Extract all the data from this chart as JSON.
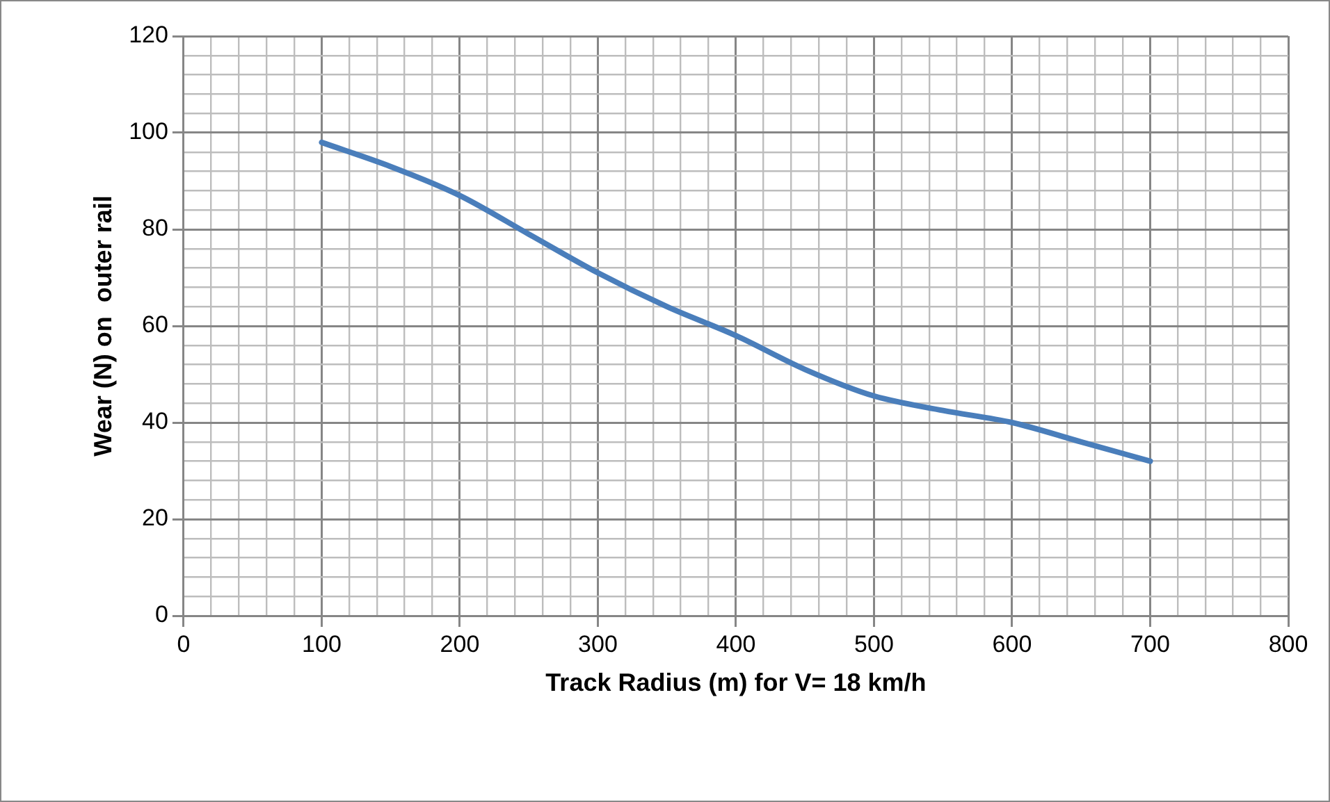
{
  "chart_data": {
    "type": "line",
    "xlabel": "Track Radius (m) for V= 18 km/h",
    "ylabel": "Wear (N) on  outer rail",
    "x": [
      100,
      150,
      200,
      250,
      300,
      350,
      400,
      450,
      500,
      550,
      600,
      650,
      700
    ],
    "series": [
      {
        "color": "#4a7ebb",
        "values": [
          98,
          93,
          87,
          79,
          71,
          64,
          58,
          51,
          45.5,
          42.5,
          40,
          36,
          32
        ]
      }
    ],
    "xlim": [
      0,
      800
    ],
    "ylim": [
      0,
      120
    ],
    "xticks": [
      0,
      {
        "value": 20,
        "label": null
      },
      {
        "value": 40,
        "label": null
      },
      {
        "value": 60,
        "label": null
      },
      {
        "value": 80,
        "label": null
      },
      100,
      {
        "value": 120,
        "label": null
      },
      {
        "value": 140,
        "label": null
      },
      {
        "value": 160,
        "label": null
      },
      {
        "value": 180,
        "label": null
      },
      200,
      {
        "value": 220,
        "label": null
      },
      {
        "value": 240,
        "label": null
      },
      {
        "value": 260,
        "label": null
      },
      {
        "value": 280,
        "label": null
      },
      300,
      {
        "value": 320,
        "label": null
      },
      {
        "value": 340,
        "label": null
      },
      {
        "value": 360,
        "label": null
      },
      {
        "value": 380,
        "label": null
      },
      400,
      {
        "value": 420,
        "label": null
      },
      {
        "value": 440,
        "label": null
      },
      {
        "value": 460,
        "label": null
      },
      {
        "value": 480,
        "label": null
      },
      500,
      {
        "value": 520,
        "label": null
      },
      {
        "value": 540,
        "label": null
      },
      {
        "value": 560,
        "label": null
      },
      {
        "value": 580,
        "label": null
      },
      600,
      {
        "value": 620,
        "label": null
      },
      {
        "value": 640,
        "label": null
      },
      {
        "value": 660,
        "label": null
      },
      {
        "value": 680,
        "label": null
      },
      700,
      {
        "value": 720,
        "label": null
      },
      {
        "value": 740,
        "label": null
      },
      {
        "value": 760,
        "label": null
      },
      {
        "value": 780,
        "label": null
      },
      800
    ],
    "yticks": [
      0,
      {
        "value": 4,
        "label": null
      },
      {
        "value": 8,
        "label": null
      },
      {
        "value": 12,
        "label": null
      },
      {
        "value": 16,
        "label": null
      },
      20,
      {
        "value": 24,
        "label": null
      },
      {
        "value": 28,
        "label": null
      },
      {
        "value": 32,
        "label": null
      },
      {
        "value": 36,
        "label": null
      },
      40,
      {
        "value": 44,
        "label": null
      },
      {
        "value": 48,
        "label": null
      },
      {
        "value": 52,
        "label": null
      },
      {
        "value": 56,
        "label": null
      },
      60,
      {
        "value": 64,
        "label": null
      },
      {
        "value": 68,
        "label": null
      },
      {
        "value": 72,
        "label": null
      },
      {
        "value": 76,
        "label": null
      },
      80,
      {
        "value": 84,
        "label": null
      },
      {
        "value": 88,
        "label": null
      },
      {
        "value": 92,
        "label": null
      },
      {
        "value": 96,
        "label": null
      },
      100,
      {
        "value": 104,
        "label": null
      },
      {
        "value": 108,
        "label": null
      },
      {
        "value": 112,
        "label": null
      },
      {
        "value": 116,
        "label": null
      },
      120
    ],
    "grid": true,
    "legend": false,
    "marker": "none",
    "line_style": "solid"
  }
}
